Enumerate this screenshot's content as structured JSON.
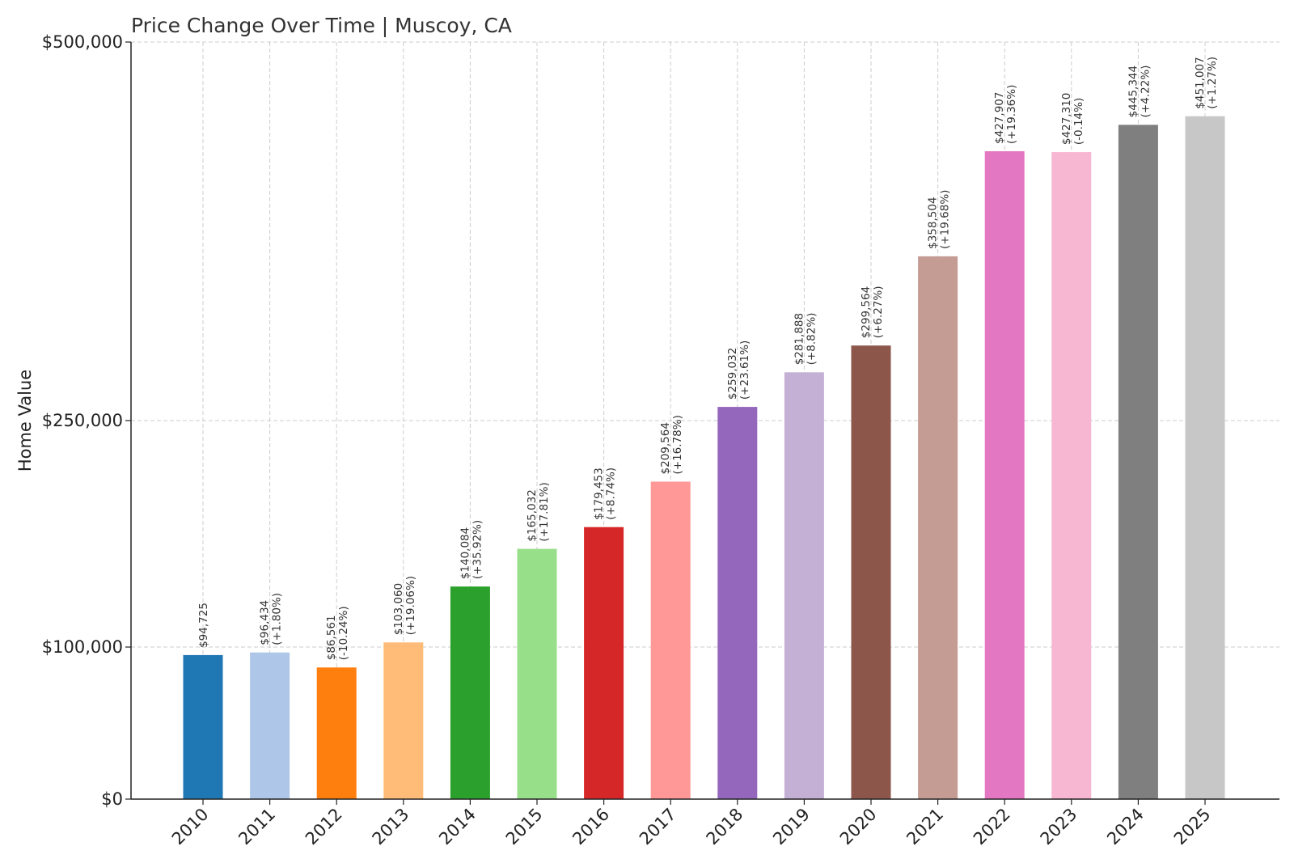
{
  "chart_data": {
    "type": "bar",
    "title": "Price Change Over Time | Muscoy, CA",
    "xlabel": "",
    "ylabel": "Home Value",
    "ylim": [
      0,
      500000
    ],
    "y_scale": "piecewise-linear",
    "y_ticks": [
      {
        "value": 0,
        "label": "$0"
      },
      {
        "value": 100000,
        "label": "$100,000"
      },
      {
        "value": 250000,
        "label": "$250,000"
      },
      {
        "value": 500000,
        "label": "$500,000"
      }
    ],
    "grid": true,
    "categories": [
      "2010",
      "2011",
      "2012",
      "2013",
      "2014",
      "2015",
      "2016",
      "2017",
      "2018",
      "2019",
      "2020",
      "2021",
      "2022",
      "2023",
      "2024",
      "2025"
    ],
    "values": [
      94725,
      96434,
      86561,
      103060,
      140084,
      165032,
      179453,
      209564,
      259032,
      281888,
      299564,
      358504,
      427907,
      427310,
      445344,
      451007
    ],
    "value_labels": [
      "$94,725",
      "$96,434",
      "$86,561",
      "$103,060",
      "$140,084",
      "$165,032",
      "$179,453",
      "$209,564",
      "$259,032",
      "$281,888",
      "$299,564",
      "$358,504",
      "$427,907",
      "$427,310",
      "$445,344",
      "$451,007"
    ],
    "change_labels": [
      "",
      "(+1.80%)",
      "(-10.24%)",
      "(+19.06%)",
      "(+35.92%)",
      "(+17.81%)",
      "(+8.74%)",
      "(+16.78%)",
      "(+23.61%)",
      "(+8.82%)",
      "(+6.27%)",
      "(+19.68%)",
      "(+19.36%)",
      "(-0.14%)",
      "(+4.22%)",
      "(+1.27%)"
    ],
    "colors": [
      "#1f77b4",
      "#aec7e8",
      "#ff7f0e",
      "#ffbb78",
      "#2ca02c",
      "#98df8a",
      "#d62728",
      "#ff9896",
      "#9467bd",
      "#c5b0d5",
      "#8c564b",
      "#c49c94",
      "#e377c2",
      "#f7b6d2",
      "#7f7f7f",
      "#c7c7c7"
    ]
  }
}
